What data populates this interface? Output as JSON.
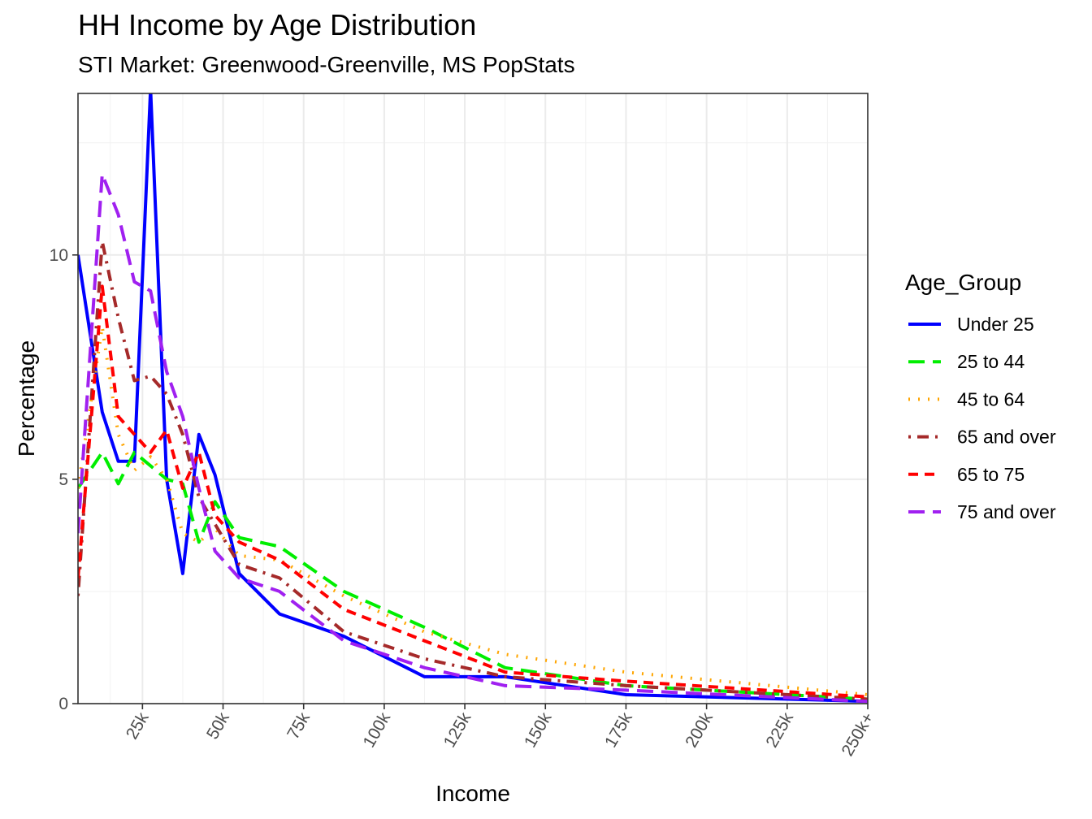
{
  "chart_data": {
    "type": "line",
    "title": "HH Income by Age Distribution",
    "subtitle": "STI Market: Greenwood-Greenville, MS PopStats",
    "xlabel": "Income",
    "ylabel": "Percentage",
    "xlim": [
      5000,
      250000
    ],
    "ylim": [
      0,
      13.6
    ],
    "x_ticks": [
      {
        "value": 25000,
        "label": "25k"
      },
      {
        "value": 50000,
        "label": "50k"
      },
      {
        "value": 75000,
        "label": "75k"
      },
      {
        "value": 100000,
        "label": "100k"
      },
      {
        "value": 125000,
        "label": "125k"
      },
      {
        "value": 150000,
        "label": "150k"
      },
      {
        "value": 175000,
        "label": "175k"
      },
      {
        "value": 200000,
        "label": "200k"
      },
      {
        "value": 225000,
        "label": "225k"
      },
      {
        "value": 250000,
        "label": "250k+"
      }
    ],
    "y_ticks": [
      {
        "value": 0,
        "label": "0"
      },
      {
        "value": 5,
        "label": "5"
      },
      {
        "value": 10,
        "label": "10"
      }
    ],
    "grid": true,
    "legend_title": "Age_Group",
    "legend_position": "right",
    "series": [
      {
        "name": "Under 25",
        "color": "#0000ff",
        "dash": "solid",
        "x": [
          5000,
          12500,
          17500,
          22500,
          27500,
          32500,
          37500,
          42500,
          47500,
          55000,
          67500,
          87500,
          112500,
          137500,
          175000,
          250000
        ],
        "y": [
          10.0,
          6.5,
          5.4,
          5.4,
          13.7,
          5.0,
          2.9,
          6.0,
          5.1,
          2.9,
          2.0,
          1.5,
          0.6,
          0.6,
          0.2,
          0.05
        ]
      },
      {
        "name": "25 to 44",
        "color": "#00ee00",
        "dash": "longdash",
        "x": [
          5000,
          12500,
          17500,
          22500,
          27500,
          32500,
          37500,
          42500,
          47500,
          55000,
          67500,
          87500,
          112500,
          137500,
          175000,
          250000
        ],
        "y": [
          4.8,
          5.6,
          4.9,
          5.6,
          5.3,
          5.0,
          4.9,
          3.6,
          4.5,
          3.7,
          3.5,
          2.5,
          1.7,
          0.8,
          0.4,
          0.1
        ]
      },
      {
        "name": "45 to 64",
        "color": "#ffa500",
        "dash": "dotted",
        "x": [
          5000,
          12500,
          17500,
          22500,
          27500,
          32500,
          37500,
          42500,
          47500,
          55000,
          67500,
          87500,
          112500,
          137500,
          175000,
          250000
        ],
        "y": [
          4.8,
          8.4,
          6.0,
          5.2,
          5.5,
          5.0,
          3.8,
          3.6,
          3.9,
          3.3,
          3.2,
          2.4,
          1.6,
          1.1,
          0.7,
          0.2
        ]
      },
      {
        "name": "65 and over",
        "color": "#a52a2a",
        "dash": "dotdash",
        "x": [
          5000,
          12500,
          17500,
          22500,
          27500,
          32500,
          37500,
          42500,
          47500,
          55000,
          67500,
          87500,
          112500,
          137500,
          175000,
          250000
        ],
        "y": [
          2.4,
          10.3,
          8.6,
          7.2,
          7.3,
          6.9,
          6.0,
          4.6,
          4.0,
          3.1,
          2.8,
          1.6,
          1.0,
          0.6,
          0.4,
          0.1
        ]
      },
      {
        "name": "65 to 75",
        "color": "#ff0000",
        "dash": "dashed",
        "x": [
          5000,
          12500,
          17500,
          22500,
          27500,
          32500,
          37500,
          42500,
          47500,
          55000,
          67500,
          87500,
          112500,
          137500,
          175000,
          250000
        ],
        "y": [
          2.8,
          9.3,
          6.4,
          6.0,
          5.6,
          6.1,
          4.8,
          5.6,
          4.2,
          3.6,
          3.2,
          2.1,
          1.4,
          0.7,
          0.5,
          0.15
        ]
      },
      {
        "name": "75 and over",
        "color": "#a020f0",
        "dash": "longdash",
        "x": [
          5000,
          12500,
          17500,
          22500,
          27500,
          32500,
          37500,
          42500,
          47500,
          55000,
          67500,
          87500,
          112500,
          137500,
          175000,
          250000
        ],
        "y": [
          3.8,
          11.8,
          10.9,
          9.4,
          9.2,
          7.4,
          6.4,
          4.8,
          3.4,
          2.8,
          2.5,
          1.4,
          0.8,
          0.4,
          0.3,
          0.05
        ]
      }
    ]
  }
}
